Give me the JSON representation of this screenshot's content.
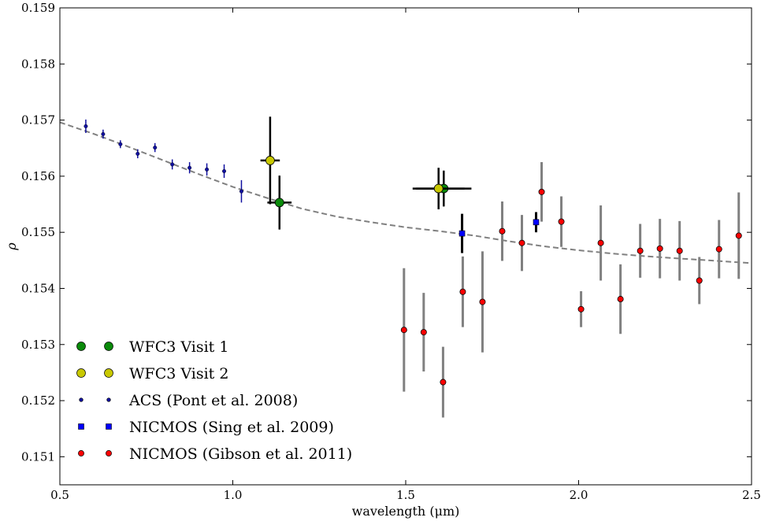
{
  "chart_data": {
    "type": "scatter",
    "title": "",
    "xlabel": "wavelength (μm)",
    "ylabel": "ρ",
    "xlim": [
      0.5,
      2.5
    ],
    "ylim": [
      0.1505,
      0.159
    ],
    "x_ticks": [
      "0.5",
      "1.0",
      "1.5",
      "2.0",
      "2.5"
    ],
    "x_tick_values": [
      0.5,
      1.0,
      1.5,
      2.0,
      2.5
    ],
    "y_ticks": [
      "0.151",
      "0.152",
      "0.153",
      "0.154",
      "0.155",
      "0.156",
      "0.157",
      "0.158",
      "0.159"
    ],
    "y_tick_values": [
      0.151,
      0.152,
      0.153,
      0.154,
      0.155,
      0.156,
      0.157,
      0.158,
      0.159
    ],
    "grid": false,
    "legend_position": "bottom-left",
    "model_curve": {
      "style": "dashed",
      "color": "#808080",
      "x": [
        0.5,
        0.6,
        0.7,
        0.8,
        0.9,
        1.0,
        1.1,
        1.2,
        1.3,
        1.4,
        1.5,
        1.6,
        1.7,
        1.8,
        1.9,
        2.0,
        2.1,
        2.2,
        2.3,
        2.4,
        2.5
      ],
      "y": [
        0.15696,
        0.15675,
        0.15652,
        0.15628,
        0.15604,
        0.15581,
        0.15561,
        0.15542,
        0.15528,
        0.15518,
        0.15509,
        0.15502,
        0.15494,
        0.15484,
        0.15475,
        0.15468,
        0.15462,
        0.15457,
        0.15453,
        0.15449,
        0.15445
      ]
    },
    "series": [
      {
        "name": "WFC3 Visit 1",
        "marker": "circle-large",
        "color": "#0a8a0a",
        "error_color": "#000000",
        "points": [
          {
            "x": 1.135,
            "y": 0.15553,
            "yerr": 0.00048,
            "xerr": 0.035
          },
          {
            "x": 1.61,
            "y": 0.15578,
            "yerr": 0.00032,
            "xerr": 0.08
          }
        ]
      },
      {
        "name": "WFC3 Visit 2",
        "marker": "circle-large",
        "color": "#c8c800",
        "error_color": "#000000",
        "points": [
          {
            "x": 1.108,
            "y": 0.15628,
            "yerr": 0.00078,
            "xerr": 0.028
          },
          {
            "x": 1.595,
            "y": 0.15578,
            "yerr": 0.00037,
            "xerr": 0.075
          }
        ]
      },
      {
        "name": "ACS (Pont et al. 2008)",
        "marker": "dot-small",
        "color": "#1010a0",
        "error_color": "#1010a0",
        "points": [
          {
            "x": 0.575,
            "y": 0.15689,
            "yerr": 0.00012
          },
          {
            "x": 0.625,
            "y": 0.15675,
            "yerr": 8e-05
          },
          {
            "x": 0.675,
            "y": 0.15657,
            "yerr": 7e-05
          },
          {
            "x": 0.725,
            "y": 0.1564,
            "yerr": 8e-05
          },
          {
            "x": 0.775,
            "y": 0.15651,
            "yerr": 8e-05
          },
          {
            "x": 0.825,
            "y": 0.15621,
            "yerr": 9e-05
          },
          {
            "x": 0.875,
            "y": 0.15615,
            "yerr": 0.0001
          },
          {
            "x": 0.925,
            "y": 0.15612,
            "yerr": 0.00011
          },
          {
            "x": 0.975,
            "y": 0.15609,
            "yerr": 0.00012
          },
          {
            "x": 1.025,
            "y": 0.15573,
            "yerr": 0.0002
          }
        ]
      },
      {
        "name": "NICMOS (Sing et al. 2009)",
        "marker": "square",
        "color": "#0000ff",
        "error_color": "#000000",
        "points": [
          {
            "x": 1.663,
            "y": 0.15498,
            "yerr": 0.00035
          },
          {
            "x": 1.877,
            "y": 0.15518,
            "yerr": 0.00018
          }
        ]
      },
      {
        "name": "NICMOS (Gibson et al. 2011)",
        "marker": "circle",
        "color": "#ff0000",
        "error_color": "#808080",
        "points": [
          {
            "x": 1.495,
            "y": 0.15326,
            "yerr": 0.0011
          },
          {
            "x": 1.552,
            "y": 0.15322,
            "yerr": 0.0007
          },
          {
            "x": 1.608,
            "y": 0.15233,
            "yerr": 0.00063
          },
          {
            "x": 1.665,
            "y": 0.15394,
            "yerr": 0.00063
          },
          {
            "x": 1.722,
            "y": 0.15376,
            "yerr": 0.0009
          },
          {
            "x": 1.779,
            "y": 0.15502,
            "yerr": 0.00053
          },
          {
            "x": 1.836,
            "y": 0.15481,
            "yerr": 0.0005
          },
          {
            "x": 1.893,
            "y": 0.15572,
            "yerr": 0.00053
          },
          {
            "x": 1.95,
            "y": 0.15519,
            "yerr": 0.00045
          },
          {
            "x": 2.007,
            "y": 0.15363,
            "yerr": 0.00032
          },
          {
            "x": 2.064,
            "y": 0.15481,
            "yerr": 0.00067
          },
          {
            "x": 2.121,
            "y": 0.15381,
            "yerr": 0.00062
          },
          {
            "x": 2.178,
            "y": 0.15467,
            "yerr": 0.00048
          },
          {
            "x": 2.235,
            "y": 0.15471,
            "yerr": 0.00053
          },
          {
            "x": 2.292,
            "y": 0.15467,
            "yerr": 0.00053
          },
          {
            "x": 2.349,
            "y": 0.15414,
            "yerr": 0.00042
          },
          {
            "x": 2.406,
            "y": 0.1547,
            "yerr": 0.00052
          },
          {
            "x": 2.463,
            "y": 0.15494,
            "yerr": 0.00077
          }
        ]
      }
    ]
  }
}
